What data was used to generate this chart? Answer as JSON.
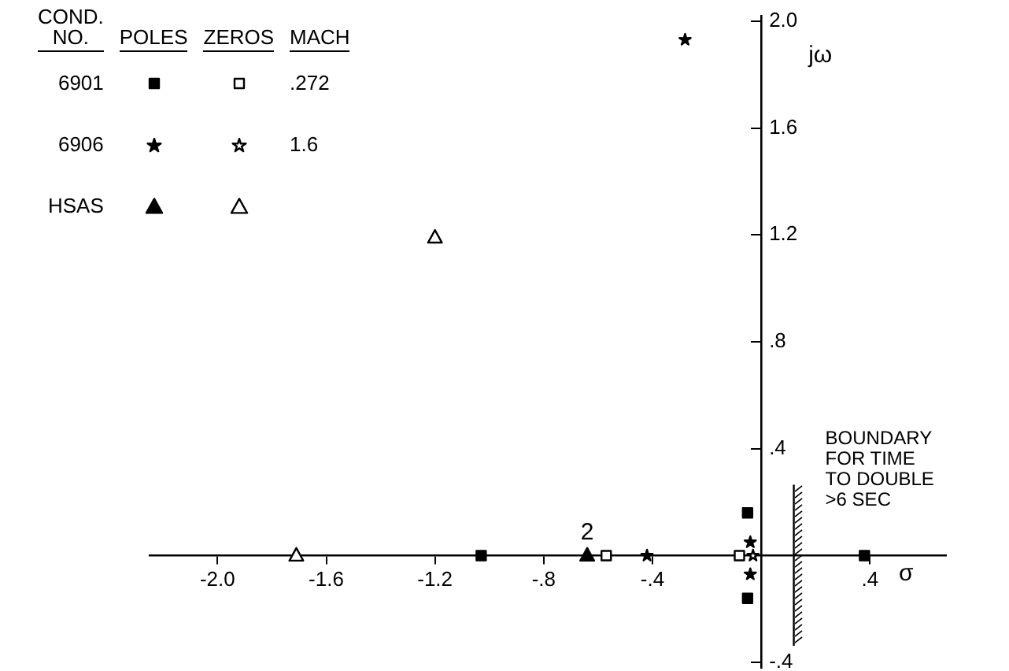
{
  "chart_data": {
    "type": "scatter",
    "xlabel": "σ",
    "ylabel": "jω",
    "legend_title": "COND. NO.",
    "xlim": [
      -2.25,
      0.68
    ],
    "ylim": [
      -0.42,
      2.02
    ],
    "xticks": [
      {
        "value": -2.0,
        "label": "-2.0"
      },
      {
        "value": -1.6,
        "label": "-1.6"
      },
      {
        "value": -1.2,
        "label": "-1.2"
      },
      {
        "value": -0.8,
        "label": "-.8"
      },
      {
        "value": -0.4,
        "label": "-.4"
      },
      {
        "value": 0.4,
        "label": ".4"
      }
    ],
    "yticks": [
      {
        "value": 2.0,
        "label": "2.0"
      },
      {
        "value": 1.6,
        "label": "1.6"
      },
      {
        "value": 1.2,
        "label": "1.2"
      },
      {
        "value": 0.8,
        "label": ".8"
      },
      {
        "value": 0.4,
        "label": ".4"
      },
      {
        "value": -0.4,
        "label": "-.4"
      }
    ],
    "grid": false,
    "legend": "top left",
    "series": [
      {
        "name": "6901",
        "color": "#000000",
        "marker": "square",
        "x": [
          -1.03,
          -0.05,
          -0.05,
          0.38,
          -0.57,
          -0.08
        ],
        "values": [
          0,
          0.16,
          -0.16,
          0,
          0,
          0
        ],
        "colors": [
          "#000000",
          "#000000",
          "#000000",
          "#000000",
          "#ffffff",
          "#ffffff"
        ]
      },
      {
        "name": "6906",
        "color": "#000000",
        "marker": "star",
        "x": [
          -0.28,
          -0.42,
          -0.04,
          -0.04,
          -0.03
        ],
        "values": [
          1.93,
          0,
          0.05,
          -0.07,
          0
        ],
        "colors": [
          "#000000",
          "#000000",
          "#000000",
          "#000000",
          "#ffffff"
        ]
      },
      {
        "name": "HSAS",
        "color": "#000000",
        "marker": "triangle",
        "x": [
          -0.64,
          -1.71,
          -1.2
        ],
        "values": [
          0,
          0,
          1.19
        ],
        "colors": [
          "#000000",
          "#ffffff",
          "#ffffff"
        ]
      }
    ],
    "ref_lines": [
      {
        "axis": "x",
        "value": 0.12,
        "label": "BOUNDARY\nFOR TIME\nTO DOUBLE\n>6 SEC",
        "color": "#000000"
      }
    ],
    "annotations": [
      "POLES",
      "ZEROS",
      "MACH",
      ".272",
      "1.6",
      {
        "text": "2",
        "x": -0.64,
        "y": 0
      }
    ]
  }
}
